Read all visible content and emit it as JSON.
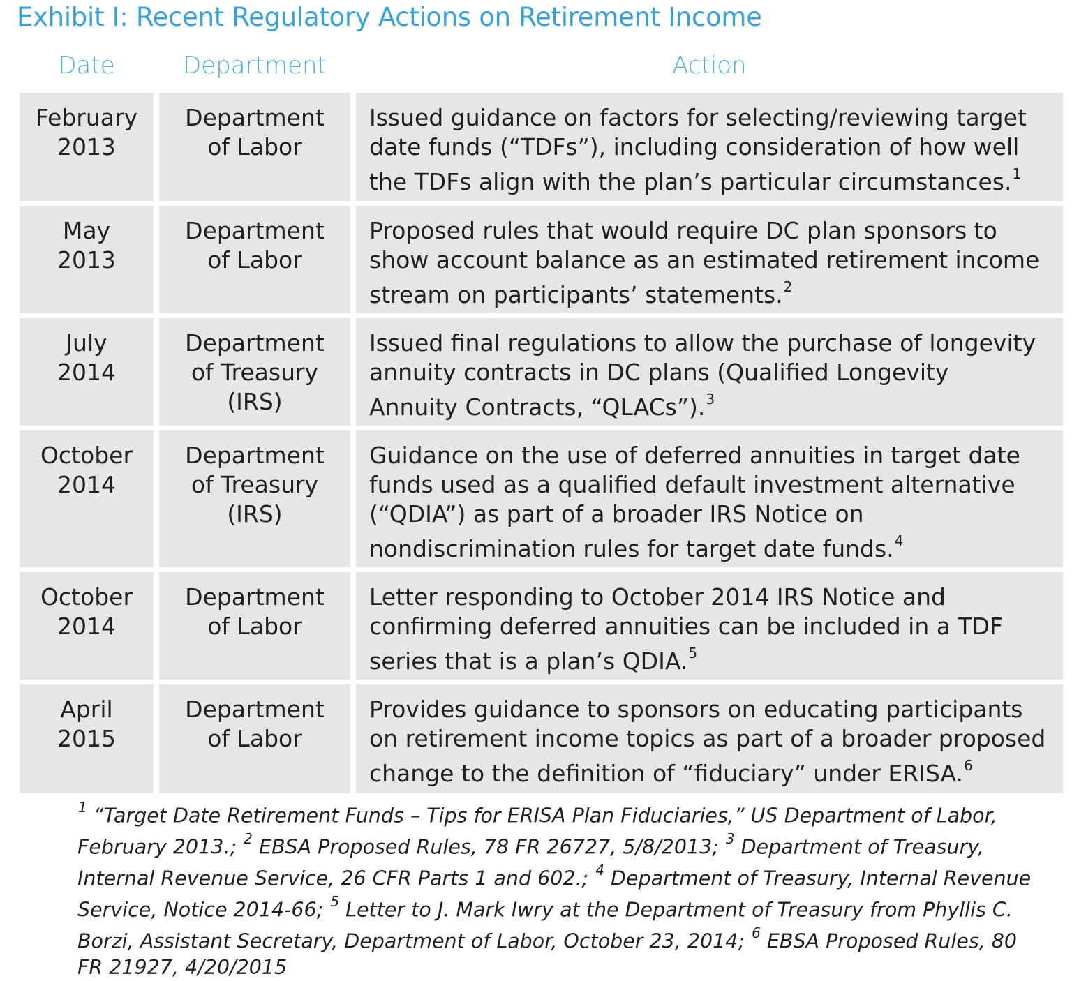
{
  "title": "Exhibit I: Recent Regulatory Actions on Retirement Income",
  "columns": {
    "date": "Date",
    "department": "Department",
    "action": "Action"
  },
  "rows": [
    {
      "date": [
        "February",
        "2013"
      ],
      "department": [
        "Department",
        "of Labor"
      ],
      "action": [
        "Issued guidance on factors for selecting/reviewing target",
        "date funds (“TDFs”), including consideration of how well",
        "the TDFs align with the plan’s particular circumstances."
      ],
      "footnote": "1"
    },
    {
      "date": [
        "May",
        "2013"
      ],
      "department": [
        "Department",
        "of Labor"
      ],
      "action": [
        "Proposed rules that would require DC plan sponsors to",
        "show account balance as an estimated retirement income",
        "stream on participants’ statements."
      ],
      "footnote": "2"
    },
    {
      "date": [
        "July",
        "2014"
      ],
      "department": [
        "Department",
        "of Treasury",
        "(IRS)"
      ],
      "action": [
        "Issued final regulations to allow the purchase of longevity",
        "annuity contracts in DC plans (Qualified Longevity",
        "Annuity Contracts, “QLACs”)."
      ],
      "footnote": "3"
    },
    {
      "date": [
        "October",
        "2014"
      ],
      "department": [
        "Department",
        "of Treasury",
        "(IRS)"
      ],
      "action": [
        "Guidance on the use of deferred annuities in target date",
        "funds used as a qualified default investment alternative",
        "(“QDIA”) as part of a broader IRS Notice on",
        "nondiscrimination rules for target date funds."
      ],
      "footnote": "4"
    },
    {
      "date": [
        "October",
        "2014"
      ],
      "department": [
        "Department",
        "of Labor"
      ],
      "action": [
        "Letter responding to October 2014 IRS Notice and",
        "confirming deferred annuities can be included in a TDF",
        "series that is a plan’s QDIA."
      ],
      "footnote": "5"
    },
    {
      "date": [
        "April",
        "2015"
      ],
      "department": [
        "Department",
        "of Labor"
      ],
      "action": [
        "Provides guidance to sponsors on educating participants",
        "on retirement income topics as part of a broader proposed",
        "change to the definition of “fiduciary” under ERISA."
      ],
      "footnote": "6"
    }
  ],
  "footnotes": [
    [
      {
        "sup": "1"
      },
      {
        "text": " “Target Date Retirement Funds – Tips for ERISA Plan Fiduciaries,” US Department of Labor,"
      }
    ],
    [
      {
        "text": "February 2013.; "
      },
      {
        "sup": "2"
      },
      {
        "text": " EBSA Proposed Rules, 78 FR 26727, 5/8/2013; "
      },
      {
        "sup": "3"
      },
      {
        "text": " Department of Treasury,"
      }
    ],
    [
      {
        "text": "Internal Revenue Service, 26 CFR Parts 1 and 602.; "
      },
      {
        "sup": "4"
      },
      {
        "text": " Department of Treasury, Internal Revenue"
      }
    ],
    [
      {
        "text": "Service, Notice 2014-66; "
      },
      {
        "sup": "5"
      },
      {
        "text": " Letter to J. Mark Iwry at the Department of Treasury from Phyllis C."
      }
    ],
    [
      {
        "text": "Borzi, Assistant Secretary, Department of Labor, October 23, 2014; "
      },
      {
        "sup": "6"
      },
      {
        "text": " EBSA Proposed Rules, 80"
      }
    ],
    [
      {
        "text": "FR 21927, 4/20/2015"
      }
    ]
  ]
}
